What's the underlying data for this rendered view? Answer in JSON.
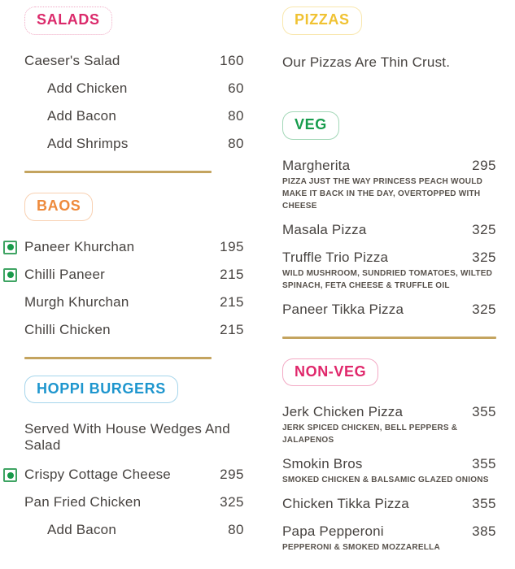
{
  "page": {
    "background": "#ffffff",
    "divider_color": "#c4a45f",
    "text_color": "#474340",
    "description_color": "#57514b"
  },
  "veg_mark": {
    "meaning": "veg-indicator",
    "border_color": "#3fa463",
    "dot_color": "#189a4a"
  },
  "menu": {
    "columns": [
      {
        "side": "left",
        "sections": [
          {
            "id": "salads",
            "badge": {
              "label": "SALADS",
              "color": "#db2a6b",
              "dotted": true
            },
            "note": null,
            "items": [
              {
                "name": "Caeser's Salad",
                "price": "160",
                "indent": false,
                "veg": false,
                "desc": null
              },
              {
                "name": "Add Chicken",
                "price": "60",
                "indent": true,
                "veg": false,
                "desc": null
              },
              {
                "name": "Add Bacon",
                "price": "80",
                "indent": true,
                "veg": false,
                "desc": null
              },
              {
                "name": "Add Shrimps",
                "price": "80",
                "indent": true,
                "veg": false,
                "desc": null
              }
            ],
            "divider_after": true
          },
          {
            "id": "baos",
            "badge": {
              "label": "BAOS",
              "color": "#ee8a3c",
              "dotted": false
            },
            "note": null,
            "items": [
              {
                "name": "Paneer Khurchan",
                "price": "195",
                "indent": false,
                "veg": true,
                "desc": null
              },
              {
                "name": "Chilli Paneer",
                "price": "215",
                "indent": false,
                "veg": true,
                "desc": null
              },
              {
                "name": "Murgh Khurchan",
                "price": "215",
                "indent": false,
                "veg": false,
                "desc": null
              },
              {
                "name": "Chilli Chicken",
                "price": "215",
                "indent": false,
                "veg": false,
                "desc": null
              }
            ],
            "divider_after": true
          },
          {
            "id": "hoppi",
            "badge": {
              "label": "HOPPI BURGERS",
              "color": "#1e96ce",
              "dotted": false
            },
            "note": "Served With House Wedges And Salad",
            "items": [
              {
                "name": "Crispy Cottage Cheese",
                "price": "295",
                "indent": false,
                "veg": true,
                "desc": null
              },
              {
                "name": "Pan Fried Chicken",
                "price": "325",
                "indent": false,
                "veg": false,
                "desc": null
              },
              {
                "name": "Add Bacon",
                "price": "80",
                "indent": true,
                "veg": false,
                "desc": null
              }
            ],
            "divider_after": false
          }
        ]
      },
      {
        "side": "right",
        "sections": [
          {
            "id": "pizzas",
            "badge": {
              "label": "PIZZAS",
              "color": "#f0c232",
              "dotted": false
            },
            "note": "Our Pizzas Are Thin Crust.",
            "items": [],
            "divider_after": false
          },
          {
            "id": "veg",
            "badge": {
              "label": "VEG",
              "color": "#169c4c",
              "dotted": false
            },
            "note": null,
            "items": [
              {
                "name": "Margherita",
                "price": "295",
                "indent": false,
                "veg": false,
                "desc": "PIZZA JUST THE WAY PRINCESS PEACH WOULD MAKE IT BACK IN THE DAY, OVERTOPPED WITH CHEESE"
              },
              {
                "name": "Masala Pizza",
                "price": "325",
                "indent": false,
                "veg": false,
                "desc": null
              },
              {
                "name": "Truffle Trio Pizza",
                "price": "325",
                "indent": false,
                "veg": false,
                "desc": "WILD MUSHROOM, SUNDRIED TOMATOES, WILTED SPINACH, FETA CHEESE & TRUFFLE OIL"
              },
              {
                "name": "Paneer Tikka Pizza",
                "price": "325",
                "indent": false,
                "veg": false,
                "desc": null
              }
            ],
            "divider_after": true
          },
          {
            "id": "nonveg",
            "badge": {
              "label": "NON-VEG",
              "color": "#e0276b",
              "dotted": false
            },
            "note": null,
            "items": [
              {
                "name": "Jerk Chicken Pizza",
                "price": "355",
                "indent": false,
                "veg": false,
                "desc": "JERK SPICED CHICKEN, BELL PEPPERS & JALAPENOS"
              },
              {
                "name": "Smokin Bros",
                "price": "355",
                "indent": false,
                "veg": false,
                "desc": "SMOKED CHICKEN & BALSAMIC GLAZED ONIONS"
              },
              {
                "name": "Chicken Tikka Pizza",
                "price": "355",
                "indent": false,
                "veg": false,
                "desc": "PEPPERONI & SMOKED MOZZARELLA"
              },
              {
                "name": "Papa Pepperoni",
                "price": "385",
                "indent": false,
                "veg": false,
                "desc": "PEPPERONI & SMOKED MOZZARELLA"
              }
            ],
            "divider_after": false
          }
        ]
      }
    ]
  }
}
